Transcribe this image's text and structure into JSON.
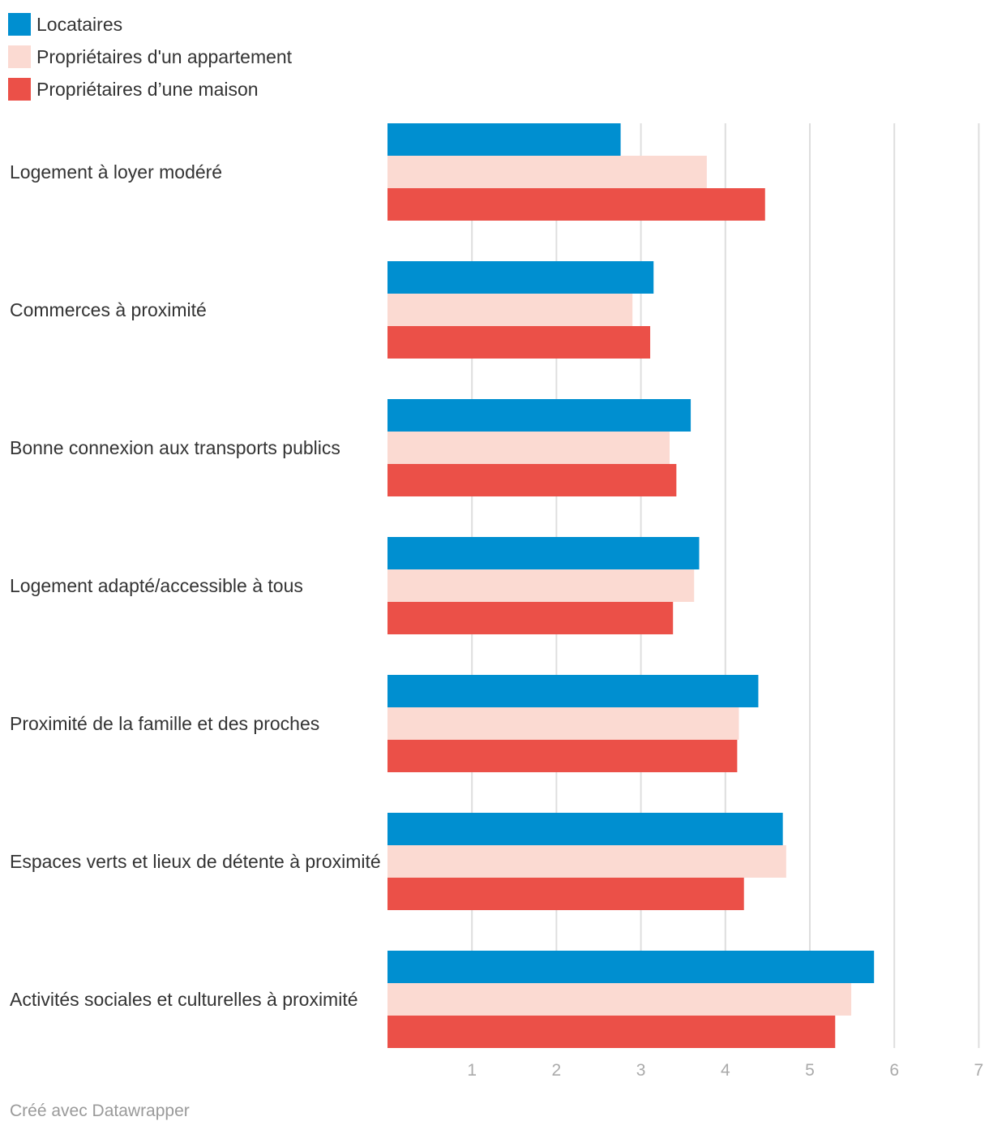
{
  "chart_data": {
    "type": "bar",
    "orientation": "horizontal",
    "title": "",
    "xlabel": "",
    "ylabel": "",
    "xlim": [
      0,
      7
    ],
    "ticks": [
      1,
      2,
      3,
      4,
      5,
      6,
      7
    ],
    "grid": true,
    "legend_position": "top-left",
    "categories": [
      "Logement à loyer modéré",
      "Commerces à proximité",
      "Bonne connexion aux transports publics",
      "Logement adapté/accessible à tous",
      "Proximité de la famille et des proches",
      "Espaces verts et lieux de détente à proximité",
      "Activités sociales et culturelles à proximité"
    ],
    "series": [
      {
        "name": "Locataires",
        "color": "#008fd0",
        "values": [
          2.76,
          3.15,
          3.59,
          3.69,
          4.39,
          4.68,
          5.76
        ]
      },
      {
        "name": "Propriétaires d'un appartement",
        "color": "#fbdad2",
        "values": [
          3.78,
          2.9,
          3.34,
          3.63,
          4.16,
          4.72,
          5.49
        ]
      },
      {
        "name": "Propriétaires d’une maison",
        "color": "#eb5048",
        "values": [
          4.47,
          3.11,
          3.42,
          3.38,
          4.14,
          4.22,
          5.3
        ]
      }
    ]
  },
  "footer": {
    "credit": "Créé avec Datawrapper"
  }
}
